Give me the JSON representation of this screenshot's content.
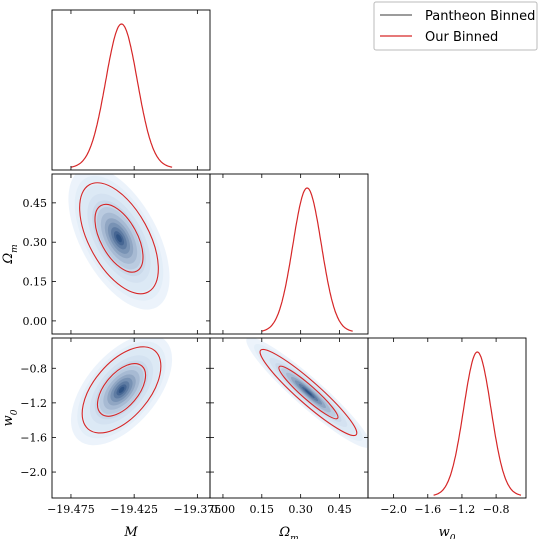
{
  "chart_data": {
    "type": "corner",
    "colors": {
      "pantheon": "#606060",
      "ours": "#d62728",
      "density_dark": "#08306b",
      "density_light": "#deebf7"
    },
    "legend": {
      "placement": "top-right",
      "entries": [
        {
          "label": "Pantheon Binned",
          "color": "#606060"
        },
        {
          "label": "Our Binned",
          "color": "#d62728"
        }
      ]
    },
    "parameters": [
      {
        "name": "M",
        "label": "M",
        "range": [
          -19.49,
          -19.365
        ],
        "ticks": [
          -19.475,
          -19.425,
          -19.375
        ],
        "tick_labels": [
          "−19.475",
          "−19.425",
          "−19.375"
        ]
      },
      {
        "name": "Omega_m",
        "label": "Ωm",
        "label_main": "Ω",
        "label_sub": "m",
        "range": [
          -0.05,
          0.56
        ],
        "ticks": [
          0.0,
          0.15,
          0.3,
          0.45
        ],
        "tick_labels": [
          "0.00",
          "0.15",
          "0.30",
          "0.45"
        ]
      },
      {
        "name": "w0",
        "label": "w0",
        "label_main": "w",
        "label_sub": "0",
        "range": [
          -2.3,
          -0.45
        ],
        "ticks": [
          -2.0,
          -1.6,
          -1.2,
          -0.8
        ],
        "tick_labels": [
          "−2.0",
          "−1.6",
          "−1.2",
          "−0.8"
        ]
      }
    ],
    "marginals": [
      {
        "param": "M",
        "mean": -19.435,
        "sigma": 0.0125
      },
      {
        "param": "Omega_m",
        "mean": 0.325,
        "sigma": 0.055
      },
      {
        "param": "w0",
        "mean": -1.02,
        "sigma": 0.16
      }
    ],
    "joints": [
      {
        "x": "M",
        "y": "Omega_m",
        "mean_x": -19.437,
        "mean_y": 0.315,
        "sigma_x": 0.0125,
        "sigma_y": 0.085,
        "rho": -0.55
      },
      {
        "x": "M",
        "y": "w0",
        "mean_x": -19.435,
        "mean_y": -1.05,
        "sigma_x": 0.0125,
        "sigma_y": 0.2,
        "rho": 0.55
      },
      {
        "x": "Omega_m",
        "y": "w0",
        "mean_x": 0.33,
        "mean_y": -1.08,
        "sigma_x": 0.075,
        "sigma_y": 0.2,
        "rho": -0.94
      }
    ]
  }
}
